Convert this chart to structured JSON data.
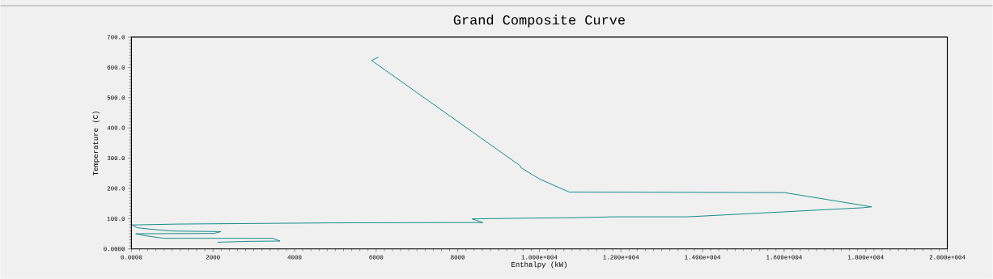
{
  "chart_data": {
    "type": "line",
    "title": "Grand Composite Curve",
    "xlabel": "Enthalpy (kW)",
    "ylabel": "Temperature (C)",
    "xlim": [
      0,
      20000
    ],
    "ylim": [
      0,
      700
    ],
    "xticks": [
      {
        "value": 0,
        "label": "0.0000"
      },
      2000,
      4000,
      6000,
      8000,
      {
        "value": 10000,
        "label": "1.000e+004"
      },
      {
        "value": 12000,
        "label": "1.200e+004"
      },
      {
        "value": 14000,
        "label": "1.400e+004"
      },
      {
        "value": 16000,
        "label": "1.600e+004"
      },
      {
        "value": 18000,
        "label": "1.800e+004"
      },
      {
        "value": 20000,
        "label": "2.000e+004"
      }
    ],
    "yticks": [
      {
        "value": 0,
        "label": "0.0000"
      },
      {
        "value": 100,
        "label": "100.0"
      },
      {
        "value": 200,
        "label": "200.0"
      },
      {
        "value": 300,
        "label": "300.0"
      },
      {
        "value": 400,
        "label": "400.0"
      },
      {
        "value": 500,
        "label": "500.0"
      },
      {
        "value": 600,
        "label": "600.0"
      },
      {
        "value": 700,
        "label": "700.0"
      }
    ],
    "grid": false,
    "marker": "none",
    "line_style": "solid",
    "series": [
      {
        "color": "#008080",
        "x": [
          6060,
          5887,
          9528,
          9555,
          10004,
          10730,
          16016,
          18143,
          17932,
          13637,
          11854,
          10829,
          9310,
          8351,
          8615,
          7875,
          4916,
          1130,
          13,
          145,
          476,
          1017,
          2195,
          2022,
          105,
          370,
          787,
          3463,
          3641,
          2868,
          2107
        ],
        "values": [
          634,
          623,
          275,
          268,
          231,
          188,
          186,
          139,
          136,
          106,
          106,
          103,
          101,
          99,
          87,
          87,
          86,
          82,
          79,
          70,
          65,
          59,
          57,
          51,
          50,
          43,
          35,
          35,
          26,
          25,
          22
        ]
      }
    ]
  }
}
